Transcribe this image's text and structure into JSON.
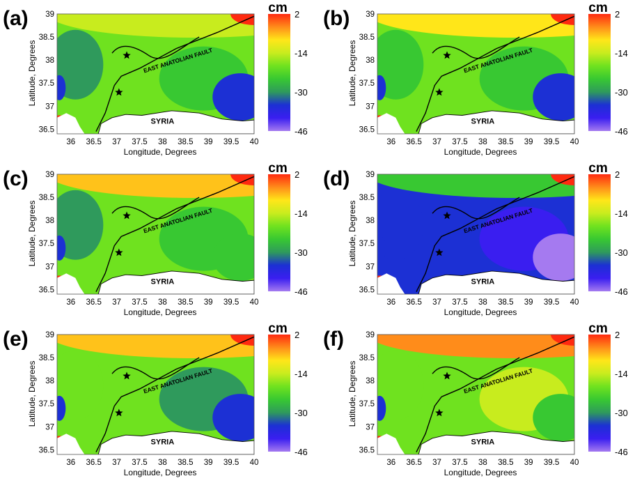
{
  "figure": {
    "colorbar": {
      "unit": "cm",
      "ticks": [
        "2",
        "-14",
        "-30",
        "-46"
      ],
      "range": [
        -46,
        2
      ],
      "colors": [
        "#ff2a10",
        "#ff8c1a",
        "#ffe619",
        "#c8ec1e",
        "#6fe21f",
        "#38c832",
        "#2f9a5c",
        "#1c30d4",
        "#3a1ef0",
        "#a57af0"
      ]
    },
    "axes": {
      "xlabel": "Longitude, Degrees",
      "ylabel": "Latitude, Degrees",
      "xticks": [
        "36",
        "36.5",
        "37",
        "37.5",
        "38",
        "38.5",
        "39",
        "39.5",
        "40"
      ],
      "yticks": [
        "39",
        "38.5",
        "38",
        "37.5",
        "37",
        "36.5"
      ],
      "xlim": [
        35.7,
        40
      ],
      "ylim": [
        36.4,
        39
      ]
    },
    "map_labels": {
      "fault": "EAST ANATOLIAN FAULT",
      "country": "SYRIA"
    },
    "epicenters": [
      {
        "lon": 37.22,
        "lat": 38.1
      },
      {
        "lon": 37.05,
        "lat": 37.3
      }
    ],
    "panels": [
      {
        "letter": "(a)",
        "background": "#6fe21f",
        "dominant_range": "-14 to -30 cm",
        "north_tone": "#c8ec1e",
        "east_tone": "#38c832",
        "west_tone": "#2f9a5c",
        "southeast_tone": "#1c30d4"
      },
      {
        "letter": "(b)",
        "background": "#6fe21f",
        "dominant_range": "-14 to -30 cm",
        "north_tone": "#ffe619",
        "east_tone": "#38c832",
        "west_tone": "#38c832",
        "southeast_tone": "#1c30d4"
      },
      {
        "letter": "(c)",
        "background": "#6fe21f",
        "dominant_range": "-14 to -30 cm",
        "north_tone": "#ffc21a",
        "east_tone": "#38c832",
        "west_tone": "#2f9a5c",
        "southeast_tone": "#38c832"
      },
      {
        "letter": "(d)",
        "background": "#1c30d4",
        "dominant_range": "-30 to -46 cm",
        "north_tone": "#38c832",
        "east_tone": "#3a1ef0",
        "west_tone": "#1c30d4",
        "southeast_tone": "#a57af0"
      },
      {
        "letter": "(e)",
        "background": "#6fe21f",
        "dominant_range": "-14 to -30 cm",
        "north_tone": "#ffc21a",
        "east_tone": "#2f9a5c",
        "west_tone": "#6fe21f",
        "southeast_tone": "#1c30d4"
      },
      {
        "letter": "(f)",
        "background": "#6fe21f",
        "dominant_range": "-2 to -30 cm",
        "north_tone": "#ff8c1a",
        "east_tone": "#c8ec1e",
        "west_tone": "#6fe21f",
        "southeast_tone": "#38c832"
      }
    ]
  }
}
